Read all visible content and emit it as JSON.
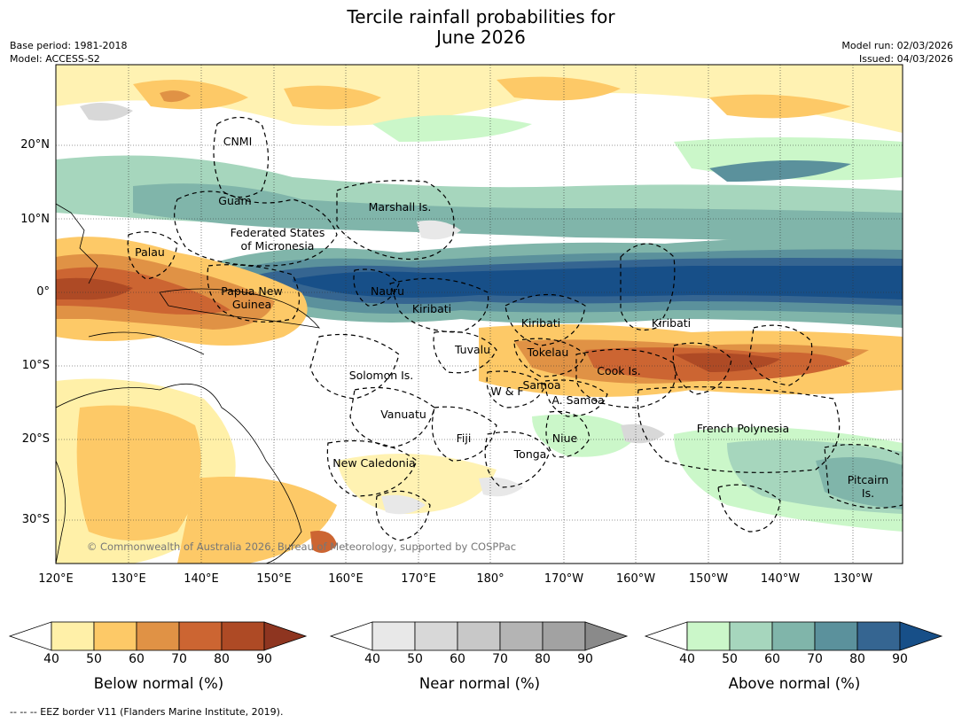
{
  "header": {
    "title_line1": "Tercile rainfall probabilities for",
    "title_line2": "June 2026",
    "base_period": "Base period: 1981-2018",
    "model": "Model: ACCESS-S2",
    "model_run": "Model run: 02/03/2026",
    "issued": "Issued: 04/03/2026"
  },
  "map": {
    "lat_labels": [
      "20°N",
      "10°N",
      "0°",
      "10°S",
      "20°S",
      "30°S"
    ],
    "lon_labels": [
      "120°E",
      "130°E",
      "140°E",
      "150°E",
      "160°E",
      "170°E",
      "180°",
      "170°W",
      "160°W",
      "150°W",
      "140°W",
      "130°W"
    ],
    "regions": [
      "CNMI",
      "Guam",
      "Marshall Is.",
      "Federated States",
      "of Micronesia",
      "Palau",
      "Papua New",
      "Guinea",
      "Nauru",
      "Kiribati",
      "Kiribati",
      "Kiribati",
      "Tuvalu",
      "Tokelau",
      "Cook Is.",
      "Solomon Is.",
      "Samoa",
      "W & F",
      "A. Samoa",
      "Vanuatu",
      "Fiji",
      "Niue",
      "French Polynesia",
      "Tonga",
      "New Caledonia",
      "Pitcairn",
      "Is."
    ],
    "copyright": "© Commonwealth of Australia 2026, Bureau of Meteorology, supported by COSPPac"
  },
  "colorbars": [
    {
      "title": "Below normal (%)",
      "ticks": [
        "40",
        "50",
        "60",
        "70",
        "80",
        "90"
      ],
      "colors": [
        "#fff0a8",
        "#fdc967",
        "#e09245",
        "#cc6532",
        "#ae4a25"
      ],
      "extend": "#8e3520"
    },
    {
      "title": "Near normal (%)",
      "ticks": [
        "40",
        "50",
        "60",
        "70",
        "80",
        "90"
      ],
      "colors": [
        "#e8e8e8",
        "#d8d8d8",
        "#c8c8c8",
        "#b4b4b4",
        "#a2a2a2"
      ],
      "extend": "#8a8a8a"
    },
    {
      "title": "Above normal (%)",
      "ticks": [
        "40",
        "50",
        "60",
        "70",
        "80",
        "90"
      ],
      "colors": [
        "#cbf7c9",
        "#a6d6bd",
        "#80b5aa",
        "#5b919c",
        "#356591"
      ],
      "extend": "#174f88"
    }
  ],
  "footnote": "--  --  -- EEZ border V11 (Flanders Marine Institute, 2019)."
}
